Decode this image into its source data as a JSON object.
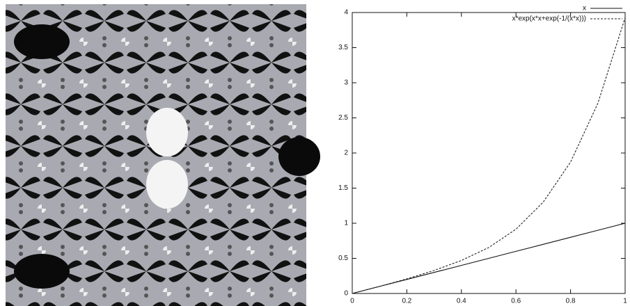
{
  "chart_data": {
    "type": "line",
    "x": [
      0,
      0.1,
      0.2,
      0.3,
      0.4,
      0.5,
      0.6,
      0.7,
      0.8,
      0.9,
      1.0
    ],
    "series": [
      {
        "name": "x",
        "color": "#111111",
        "line_style": "solid",
        "values": [
          0,
          0.1,
          0.2,
          0.3,
          0.4,
          0.5,
          0.6,
          0.7,
          0.8,
          0.9,
          1.0
        ]
      },
      {
        "name": "x*exp(x*x+exp(-1/(x*x)))",
        "color": "#222222",
        "line_style": "dashed",
        "values": [
          0,
          0.101,
          0.208,
          0.328,
          0.47,
          0.654,
          0.915,
          1.301,
          1.871,
          2.706,
          3.927
        ]
      }
    ],
    "xlim": [
      0,
      1
    ],
    "xticks": [
      0,
      0.2,
      0.4,
      0.6,
      0.8,
      1
    ],
    "ylim": [
      0,
      4
    ],
    "yticks": [
      0,
      0.5,
      1,
      1.5,
      2,
      2.5,
      3,
      3.5,
      4
    ],
    "legend": "upper right"
  }
}
